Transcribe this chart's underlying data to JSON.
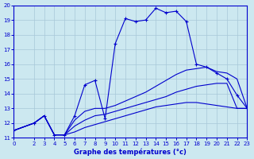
{
  "xlabel": "Graphe des températures (°c)",
  "xlim": [
    0,
    23
  ],
  "ylim": [
    11,
    20
  ],
  "yticks": [
    11,
    12,
    13,
    14,
    15,
    16,
    17,
    18,
    19,
    20
  ],
  "xticks": [
    0,
    2,
    3,
    4,
    5,
    6,
    7,
    8,
    9,
    10,
    11,
    12,
    13,
    14,
    15,
    16,
    17,
    18,
    19,
    20,
    21,
    22,
    23
  ],
  "bg_color": "#cce8f0",
  "line_color": "#0000cd",
  "grid_color": "#a8c8d8",
  "lines": [
    {
      "x": [
        0,
        2,
        3,
        4,
        5,
        6,
        7,
        8,
        9,
        10,
        11,
        12,
        13,
        14,
        15,
        16,
        17,
        18,
        19,
        20,
        21,
        22,
        23
      ],
      "y": [
        11.5,
        12.0,
        12.5,
        11.2,
        11.2,
        12.5,
        14.6,
        14.9,
        12.3,
        17.4,
        19.1,
        18.9,
        19.0,
        19.8,
        19.5,
        19.6,
        18.9,
        16.0,
        15.8,
        15.4,
        15.0,
        13.9,
        13.0
      ],
      "marker": "+"
    },
    {
      "x": [
        0,
        2,
        3,
        4,
        5,
        6,
        7,
        8,
        9,
        10,
        11,
        12,
        13,
        14,
        15,
        16,
        17,
        18,
        19,
        20,
        21,
        22,
        23
      ],
      "y": [
        11.5,
        12.0,
        12.5,
        11.2,
        11.2,
        12.2,
        12.8,
        13.0,
        13.0,
        13.2,
        13.5,
        13.8,
        14.1,
        14.5,
        14.9,
        15.3,
        15.6,
        15.7,
        15.8,
        15.5,
        15.4,
        15.0,
        13.0
      ],
      "marker": null
    },
    {
      "x": [
        0,
        2,
        3,
        4,
        5,
        6,
        7,
        8,
        9,
        10,
        11,
        12,
        13,
        14,
        15,
        16,
        17,
        18,
        19,
        20,
        21,
        22,
        23
      ],
      "y": [
        11.5,
        12.0,
        12.5,
        11.2,
        11.2,
        11.8,
        12.2,
        12.5,
        12.6,
        12.8,
        13.0,
        13.2,
        13.4,
        13.6,
        13.8,
        14.1,
        14.3,
        14.5,
        14.6,
        14.7,
        14.7,
        13.0,
        13.0
      ],
      "marker": null
    },
    {
      "x": [
        0,
        2,
        3,
        4,
        5,
        6,
        7,
        8,
        9,
        10,
        11,
        12,
        13,
        14,
        15,
        16,
        17,
        18,
        19,
        20,
        21,
        22,
        23
      ],
      "y": [
        11.5,
        12.0,
        12.5,
        11.2,
        11.2,
        11.4,
        11.7,
        11.9,
        12.1,
        12.3,
        12.5,
        12.7,
        12.9,
        13.1,
        13.2,
        13.3,
        13.4,
        13.4,
        13.3,
        13.2,
        13.1,
        13.0,
        13.0
      ],
      "marker": null
    }
  ]
}
